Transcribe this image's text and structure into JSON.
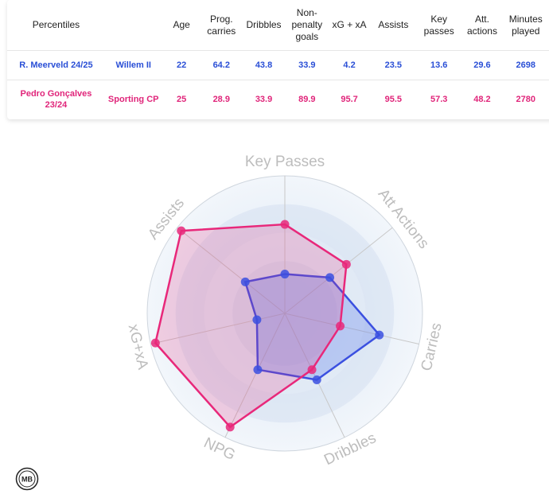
{
  "table": {
    "headers": [
      "Percentiles",
      "",
      "Age",
      "Prog. carries",
      "Dribbles",
      "Non-penalty goals",
      "xG + xA",
      "Assists",
      "Key passes",
      "Att. actions",
      "Minutes played"
    ],
    "rows": [
      {
        "player": "R. Meerveld 24/25",
        "team": "Willem II",
        "values": [
          "22",
          "64.2",
          "43.8",
          "33.9",
          "4.2",
          "23.5",
          "13.6",
          "29.6",
          "2698"
        ]
      },
      {
        "player": "Pedro Gonçalves 23/24",
        "team": "Sporting CP",
        "values": [
          "25",
          "28.9",
          "33.9",
          "89.9",
          "95.7",
          "95.5",
          "57.3",
          "48.2",
          "2780"
        ]
      }
    ]
  },
  "chart_data": {
    "type": "radar",
    "axes": [
      "Key Passes",
      "Att Actions",
      "Carries",
      "Dribbles",
      "NPG",
      "xG+xA",
      "Assists"
    ],
    "range": [
      0,
      100
    ],
    "grid": true,
    "series": [
      {
        "values": [
          13.6,
          29.6,
          64.2,
          43.8,
          33.9,
          4.2,
          23.5
        ],
        "color": "#3b50e0",
        "fill": "rgba(80,110,235,0.28)"
      },
      {
        "values": [
          57.3,
          48.2,
          28.9,
          33.9,
          89.9,
          95.7,
          95.5
        ],
        "color": "#e8287a",
        "fill": "rgba(232,40,122,0.20)"
      }
    ]
  },
  "logo": {
    "text": "MB"
  },
  "colors": {
    "blue": "#2a4fd6",
    "pink": "#e0257a"
  }
}
